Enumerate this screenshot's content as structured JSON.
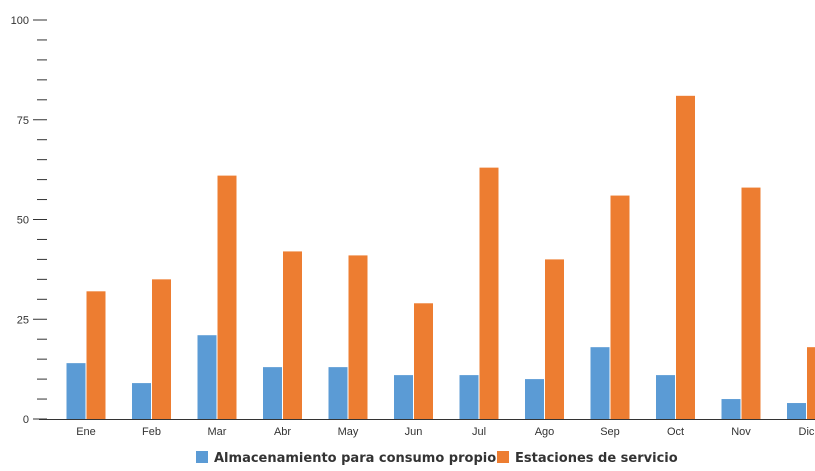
{
  "chart_data": {
    "type": "bar",
    "title": "",
    "xlabel": "",
    "ylabel": "",
    "ylim": [
      0,
      100
    ],
    "y_major_ticks": [
      0,
      25,
      50,
      75,
      100
    ],
    "y_minor_step": 5,
    "grid": false,
    "legend_position": "bottom-center",
    "categories": [
      "Ene",
      "Feb",
      "Mar",
      "Abr",
      "May",
      "Jun",
      "Jul",
      "Ago",
      "Sep",
      "Oct",
      "Nov",
      "Dic"
    ],
    "series": [
      {
        "name": "Almacenamiento para consumo propio",
        "color": "#5b9bd5",
        "values": [
          14,
          9,
          21,
          13,
          13,
          11,
          11,
          10,
          18,
          11,
          5,
          4
        ]
      },
      {
        "name": "Estaciones de servicio",
        "color": "#ed7d31",
        "values": [
          32,
          35,
          61,
          42,
          41,
          29,
          63,
          40,
          56,
          81,
          58,
          18
        ]
      }
    ]
  }
}
